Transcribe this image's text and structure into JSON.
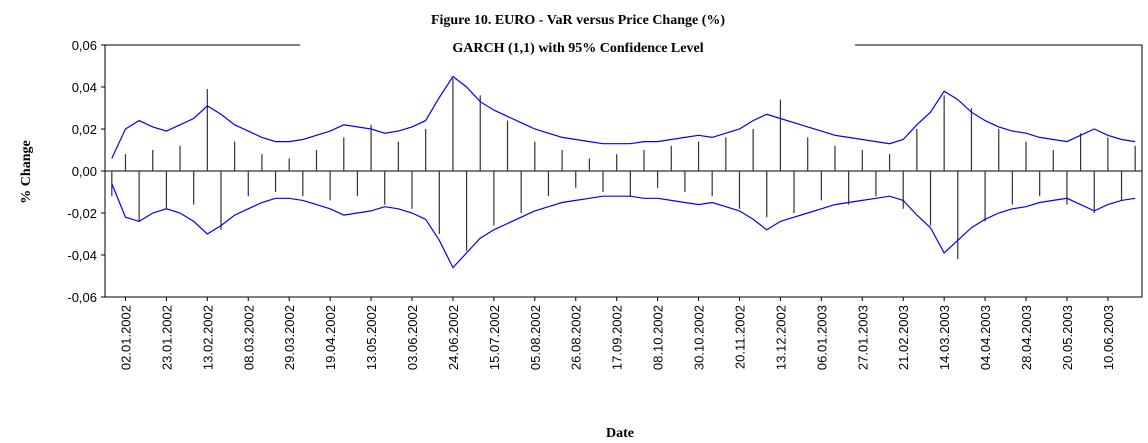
{
  "chart_data": {
    "type": "bar",
    "title": "Figure 10. EURO - VaR versus Price Change (%)",
    "subtitle": "GARCH (1,1) with 95% Confidence Level",
    "y_label": "% Change",
    "x_label": "Date",
    "categories": [
      null,
      "02.01.2002",
      null,
      null,
      "23.01.2002",
      null,
      null,
      "13.02.2002",
      null,
      null,
      "08.03.2002",
      null,
      null,
      "29.03.2002",
      null,
      null,
      "19.04.2002",
      null,
      null,
      "13.05.2002",
      null,
      null,
      "03.06.2002",
      null,
      null,
      "24.06.2002",
      null,
      null,
      "15.07.2002",
      null,
      null,
      "05.08.2002",
      null,
      null,
      "26.08.2002",
      null,
      null,
      "17.09.2002",
      null,
      null,
      "08.10.2002",
      null,
      null,
      "30.10.2002",
      null,
      null,
      "20.11.2002",
      null,
      null,
      "13.12.2002",
      null,
      null,
      "06.01.2003",
      null,
      null,
      "27.01.2003",
      null,
      null,
      "21.02.2003",
      null,
      null,
      "14.03.2003",
      null,
      null,
      "04.04.2003",
      null,
      null,
      "28.04.2003",
      null,
      null,
      "20.05.2003",
      null,
      null,
      "10.06.2003",
      null,
      null
    ],
    "series": [
      {
        "mark": "bar",
        "color": "#333333",
        "values": [
          -0.012,
          0.008,
          -0.024,
          0.01,
          -0.018,
          0.012,
          -0.016,
          0.039,
          -0.028,
          0.014,
          -0.012,
          0.008,
          -0.01,
          0.006,
          -0.012,
          0.01,
          -0.014,
          0.016,
          -0.012,
          0.022,
          -0.016,
          0.014,
          -0.018,
          0.02,
          -0.03,
          0.044,
          -0.038,
          0.036,
          -0.026,
          0.024,
          -0.02,
          0.014,
          -0.012,
          0.01,
          -0.008,
          0.006,
          -0.01,
          0.008,
          -0.012,
          0.01,
          -0.008,
          0.012,
          -0.01,
          0.014,
          -0.012,
          0.016,
          -0.018,
          0.02,
          -0.022,
          0.034,
          -0.02,
          0.016,
          -0.014,
          0.012,
          -0.016,
          0.01,
          -0.012,
          0.008,
          -0.018,
          0.02,
          -0.026,
          0.036,
          -0.042,
          0.03,
          -0.024,
          0.02,
          -0.016,
          0.014,
          -0.012,
          0.01,
          -0.016,
          0.018,
          -0.02,
          0.016,
          -0.014,
          0.012
        ]
      },
      {
        "mark": "line",
        "color": "#0000ff",
        "values": [
          0.006,
          0.02,
          0.024,
          0.021,
          0.019,
          0.022,
          0.025,
          0.031,
          0.027,
          0.022,
          0.019,
          0.016,
          0.014,
          0.014,
          0.015,
          0.017,
          0.019,
          0.022,
          0.021,
          0.02,
          0.018,
          0.019,
          0.021,
          0.024,
          0.035,
          0.045,
          0.04,
          0.033,
          0.029,
          0.026,
          0.023,
          0.02,
          0.018,
          0.016,
          0.015,
          0.014,
          0.013,
          0.013,
          0.013,
          0.014,
          0.014,
          0.015,
          0.016,
          0.017,
          0.016,
          0.018,
          0.02,
          0.024,
          0.027,
          0.025,
          0.023,
          0.021,
          0.019,
          0.017,
          0.016,
          0.015,
          0.014,
          0.013,
          0.015,
          0.022,
          0.028,
          0.038,
          0.034,
          0.028,
          0.024,
          0.021,
          0.019,
          0.018,
          0.016,
          0.015,
          0.014,
          0.017,
          0.02,
          0.017,
          0.015,
          0.014
        ]
      },
      {
        "mark": "line",
        "color": "#0000ff",
        "values": [
          -0.006,
          -0.022,
          -0.024,
          -0.02,
          -0.018,
          -0.02,
          -0.024,
          -0.03,
          -0.026,
          -0.021,
          -0.018,
          -0.015,
          -0.013,
          -0.013,
          -0.014,
          -0.016,
          -0.018,
          -0.021,
          -0.02,
          -0.019,
          -0.017,
          -0.018,
          -0.02,
          -0.023,
          -0.033,
          -0.046,
          -0.039,
          -0.032,
          -0.028,
          -0.025,
          -0.022,
          -0.019,
          -0.017,
          -0.015,
          -0.014,
          -0.013,
          -0.012,
          -0.012,
          -0.012,
          -0.013,
          -0.013,
          -0.014,
          -0.015,
          -0.016,
          -0.015,
          -0.017,
          -0.019,
          -0.023,
          -0.028,
          -0.024,
          -0.022,
          -0.02,
          -0.018,
          -0.016,
          -0.015,
          -0.014,
          -0.013,
          -0.012,
          -0.014,
          -0.021,
          -0.027,
          -0.039,
          -0.033,
          -0.027,
          -0.023,
          -0.02,
          -0.018,
          -0.017,
          -0.015,
          -0.014,
          -0.013,
          -0.016,
          -0.019,
          -0.016,
          -0.014,
          -0.013
        ]
      }
    ],
    "ylim": [
      -0.06,
      0.06
    ],
    "yticks": [
      {
        "value": -0.06,
        "label": "-0,06"
      },
      {
        "value": -0.04,
        "label": "-0,04"
      },
      {
        "value": -0.02,
        "label": "-0,02"
      },
      {
        "value": 0,
        "label": "0,00"
      },
      {
        "value": 0.02,
        "label": "0,02"
      },
      {
        "value": 0.04,
        "label": "0,04"
      },
      {
        "value": 0.06,
        "label": "0,06"
      }
    ],
    "grid": false
  }
}
